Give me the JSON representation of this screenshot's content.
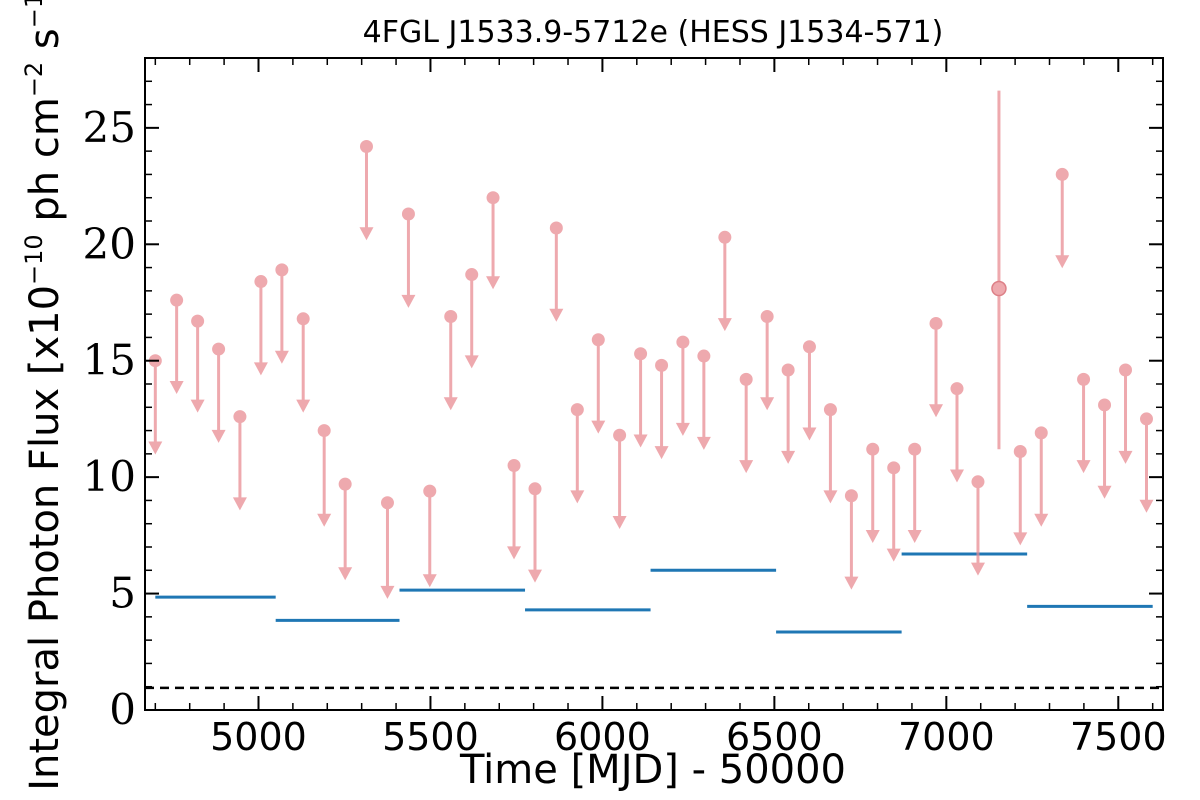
{
  "chart_data": {
    "type": "scatter",
    "title": "4FGL J1533.9-5712e (HESS J1534-571)",
    "xlabel": "Time [MJD] - 50000",
    "ylabel": "Integral Photon Flux [x10^-10 ph cm^-2 s^-1]",
    "ylabel_parts": {
      "base": "Integral Photon Flux [x10",
      "exp1": "−10",
      "mid": " ph cm",
      "exp2": "−2",
      "mid2": " s",
      "exp3": "−1",
      "end": "]"
    },
    "xlim": [
      4670,
      7630
    ],
    "ylim": [
      0,
      28
    ],
    "x_ticks": [
      5000,
      5500,
      6000,
      6500,
      7000,
      7500
    ],
    "x_tick_labels": [
      "5000",
      "5500",
      "6000",
      "6500",
      "7000",
      "7500"
    ],
    "y_ticks": [
      0,
      5,
      10,
      15,
      20,
      25
    ],
    "y_tick_labels": [
      "0",
      "5",
      "10",
      "15",
      "20",
      "25"
    ],
    "colors": {
      "points": "#e8888f",
      "steps": "#1f77b4",
      "baseline": "#000000"
    },
    "upper_limits": {
      "x": [
        4700,
        4762,
        4823,
        4884,
        4946,
        5007,
        5068,
        5130,
        5191,
        5252,
        5314,
        5375,
        5436,
        5498,
        5559,
        5620,
        5682,
        5743,
        5804,
        5866,
        5927,
        5988,
        6050,
        6111,
        6172,
        6234,
        6295,
        6356,
        6418,
        6479,
        6540,
        6602,
        6663,
        6724,
        6786,
        6847,
        6908,
        6970,
        7031,
        7092,
        7215,
        7276,
        7337,
        7399,
        7460,
        7521,
        7582
      ],
      "y": [
        15.0,
        17.6,
        16.7,
        15.5,
        12.6,
        18.4,
        18.9,
        16.8,
        12.0,
        9.7,
        24.2,
        8.9,
        21.3,
        9.4,
        16.9,
        18.7,
        22.0,
        10.5,
        9.5,
        20.7,
        12.9,
        15.9,
        11.8,
        15.3,
        14.8,
        15.8,
        15.2,
        20.3,
        14.2,
        16.9,
        14.6,
        15.6,
        12.9,
        9.2,
        11.2,
        10.4,
        11.2,
        16.6,
        13.8,
        9.8,
        11.1,
        11.9,
        23.0,
        14.2,
        13.1,
        14.6,
        12.5
      ],
      "arrow_to": [
        11.1,
        13.7,
        12.9,
        11.6,
        8.7,
        14.5,
        15.0,
        12.9,
        8.0,
        5.7,
        20.3,
        4.9,
        17.4,
        5.4,
        13.0,
        14.8,
        18.2,
        6.6,
        5.6,
        16.8,
        9.0,
        12.0,
        7.9,
        11.4,
        10.9,
        11.9,
        11.3,
        16.4,
        10.3,
        13.0,
        10.7,
        11.7,
        9.0,
        5.3,
        7.3,
        6.5,
        7.3,
        12.7,
        9.9,
        5.9,
        7.2,
        8.0,
        19.1,
        10.3,
        9.2,
        10.7,
        8.6
      ]
    },
    "detections": [
      {
        "x": 7153,
        "y": 18.1,
        "yerr_low": 11.2,
        "yerr_high": 26.6
      }
    ],
    "binned_flux": [
      {
        "x_start": 4700,
        "x_end": 5050,
        "y": 4.85
      },
      {
        "x_start": 5050,
        "x_end": 5410,
        "y": 3.85
      },
      {
        "x_start": 5410,
        "x_end": 5775,
        "y": 5.15
      },
      {
        "x_start": 5775,
        "x_end": 6140,
        "y": 4.3
      },
      {
        "x_start": 6140,
        "x_end": 6505,
        "y": 6.0
      },
      {
        "x_start": 6505,
        "x_end": 6870,
        "y": 3.35
      },
      {
        "x_start": 6870,
        "x_end": 7235,
        "y": 6.7
      },
      {
        "x_start": 7235,
        "x_end": 7600,
        "y": 4.45
      }
    ],
    "baseline_dashed_y": 0.95
  }
}
